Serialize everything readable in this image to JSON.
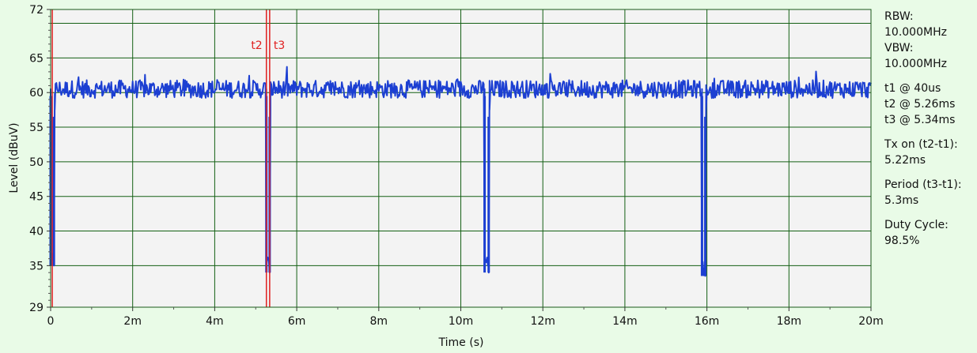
{
  "chart_data": {
    "type": "line",
    "title": "",
    "xlabel": "Time (s)",
    "ylabel": "Level (dBuV)",
    "xlim": [
      0,
      20
    ],
    "ylim": [
      29,
      72
    ],
    "x_unit": "ms",
    "xticks": [
      0,
      2,
      4,
      6,
      8,
      10,
      12,
      14,
      16,
      18,
      20
    ],
    "xtick_labels": [
      "0",
      "2m",
      "4m",
      "6m",
      "8m",
      "10m",
      "12m",
      "14m",
      "16m",
      "18m",
      "20m"
    ],
    "yticks": [
      29,
      35,
      40,
      45,
      50,
      55,
      60,
      65,
      72
    ],
    "ytick_labels": [
      "29",
      "35",
      "40",
      "45",
      "50",
      "55",
      "60",
      "65",
      "72"
    ],
    "grid": true,
    "colors": {
      "background": "#e9fbe7",
      "plot_background": "#f3f3f3",
      "grid": "#146014",
      "trace": "#1c3fd2",
      "markers": "#e02020"
    },
    "series": [
      {
        "name": "",
        "baseline": 60.5,
        "noise_range": [
          59,
          64
        ],
        "dips": [
          {
            "start": 0.0,
            "end": 0.08,
            "min": 35
          },
          {
            "start": 5.26,
            "end": 5.34,
            "min": 34
          },
          {
            "start": 10.58,
            "end": 10.68,
            "min": 34
          },
          {
            "start": 15.88,
            "end": 15.96,
            "min": 33.5
          }
        ]
      }
    ],
    "markers": [
      {
        "label": "",
        "x": 0.04
      },
      {
        "label": "t2",
        "x": 5.26
      },
      {
        "label": "t3",
        "x": 5.34
      }
    ],
    "info": [
      "RBW:",
      "10.000MHz",
      "VBW:",
      "10.000MHz",
      "",
      "t1 @ 40us",
      "t2 @ 5.26ms",
      "t3 @ 5.34ms",
      "",
      "Tx on (t2-t1):",
      "5.22ms",
      "",
      "Period (t3-t1):",
      "5.3ms",
      "",
      "Duty Cycle:",
      "98.5%"
    ]
  }
}
